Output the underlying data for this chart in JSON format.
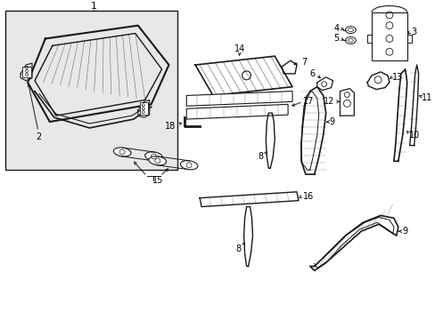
{
  "background_color": "#ffffff",
  "box_bg": "#e8e8e8",
  "line_color": "#1a1a1a",
  "label_color": "#000000"
}
